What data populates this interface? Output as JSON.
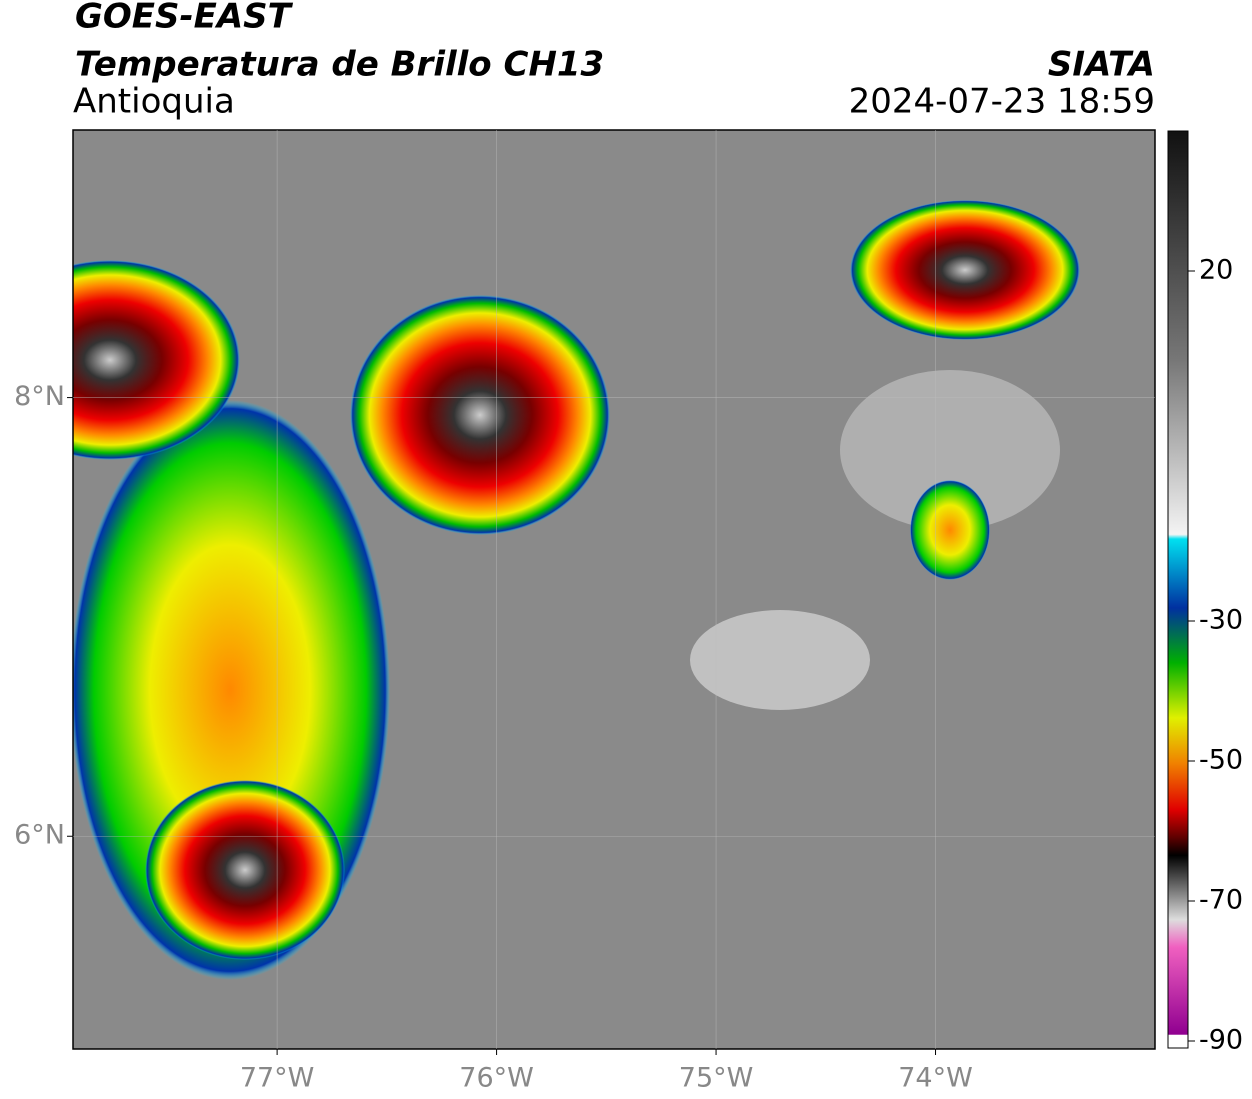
{
  "header": {
    "satellite": "GOES-EAST",
    "title": "Temperatura de Brillo CH13",
    "region": "Antioquia",
    "organization": "SIATA",
    "datetime": "2024-07-23 18:59"
  },
  "map": {
    "xlim": [
      -77.93,
      -73.0
    ],
    "ylim": [
      5.03,
      9.22
    ],
    "xticks": [
      {
        "value": -77,
        "label": "77°W"
      },
      {
        "value": -76,
        "label": "76°W"
      },
      {
        "value": -75,
        "label": "75°W"
      },
      {
        "value": -74,
        "label": "74°W"
      }
    ],
    "yticks": [
      {
        "value": 8,
        "label": "8°N"
      },
      {
        "value": 6,
        "label": "6°N"
      }
    ],
    "grid": true
  },
  "colorbar": {
    "lim": [
      -91,
      40
    ],
    "ticks": [
      20,
      -30,
      -50,
      -70,
      -90
    ]
  }
}
